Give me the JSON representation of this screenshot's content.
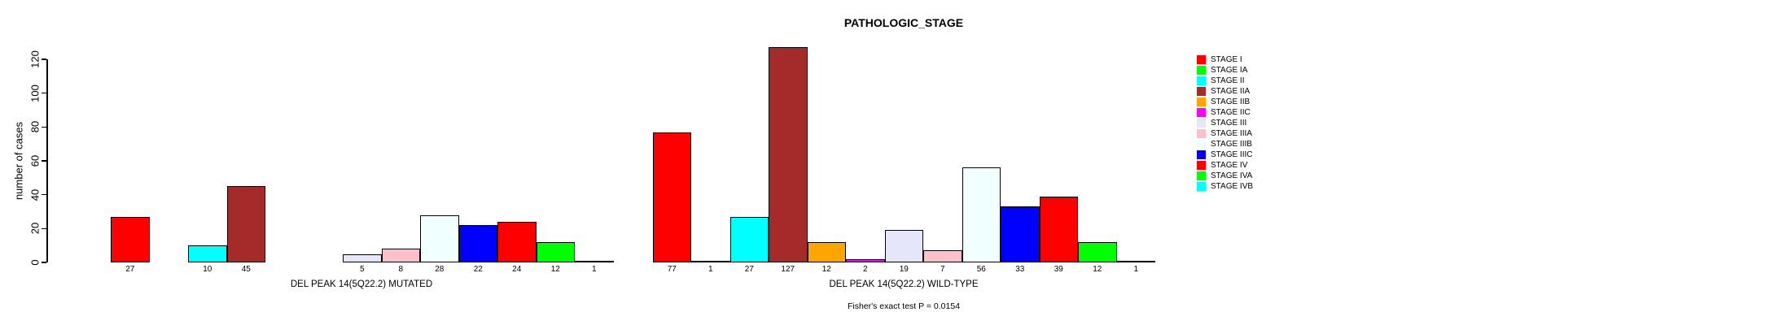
{
  "chart_data": {
    "type": "bar",
    "title": "PATHOLOGIC_STAGE",
    "ylabel": "number of cases",
    "ylim": [
      0,
      120
    ],
    "yticks": [
      0,
      20,
      40,
      60,
      80,
      100,
      120
    ],
    "grid": false,
    "legend_position": "right-inside",
    "categories": [
      "STAGE I",
      "STAGE IA",
      "STAGE II",
      "STAGE IIA",
      "STAGE IIB",
      "STAGE IIC",
      "STAGE III",
      "STAGE IIIA",
      "STAGE IIIB",
      "STAGE IIIC",
      "STAGE IV",
      "STAGE IVA",
      "STAGE IVB"
    ],
    "colors": [
      "#FF0000",
      "#00FF00",
      "#00FFFF",
      "#A52A2A",
      "#FFA500",
      "#FF00FF",
      "#E6E6FA",
      "#FFC0CB",
      "#F0FFFF",
      "#0000FF",
      "#FF0000",
      "#00FF00",
      "#00FFFF"
    ],
    "series": [
      {
        "name": "DEL PEAK 14(5Q22.2) MUTATED",
        "values": [
          27,
          0,
          10,
          45,
          0,
          0,
          5,
          8,
          28,
          22,
          24,
          12,
          1
        ]
      },
      {
        "name": "DEL PEAK 14(5Q22.2) WILD-TYPE",
        "values": [
          77,
          1,
          27,
          127,
          12,
          2,
          19,
          7,
          56,
          33,
          39,
          12,
          1
        ]
      }
    ],
    "groups": [
      {
        "label": "DEL PEAK 14(5Q22.2) MUTATED"
      },
      {
        "label": "DEL PEAK 14(5Q22.2) WILD-TYPE"
      }
    ],
    "footnote": "Fisher's exact test P = 0.0154",
    "bar_border_color": "#000000"
  }
}
